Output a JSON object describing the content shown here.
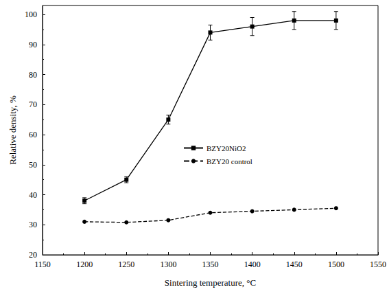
{
  "chart_data": {
    "type": "line",
    "x_label": "Sintering temperature, °C",
    "y_label": "Relative density, %",
    "x": [
      1200,
      1250,
      1300,
      1350,
      1400,
      1450,
      1500
    ],
    "series": [
      {
        "name": "BZY20NiO2",
        "color": "#000000",
        "marker": "square",
        "line_style": "solid",
        "values": [
          38,
          45,
          65,
          94,
          96,
          98,
          98
        ],
        "errors": [
          1,
          1,
          1.5,
          2.5,
          3,
          3,
          3
        ]
      },
      {
        "name": "BZY20 control",
        "color": "#000000",
        "marker": "circle",
        "line_style": "dashed",
        "values": [
          31,
          30.8,
          31.5,
          34,
          34.5,
          35,
          35.5
        ]
      }
    ],
    "xlim": [
      1150,
      1550
    ],
    "xticks": [
      1150,
      1200,
      1250,
      1300,
      1350,
      1400,
      1450,
      1500,
      1550
    ],
    "ylim": [
      20,
      103
    ],
    "yticks": [
      20,
      30,
      40,
      50,
      60,
      70,
      80,
      90,
      100
    ],
    "grid": false,
    "legend": "right"
  }
}
